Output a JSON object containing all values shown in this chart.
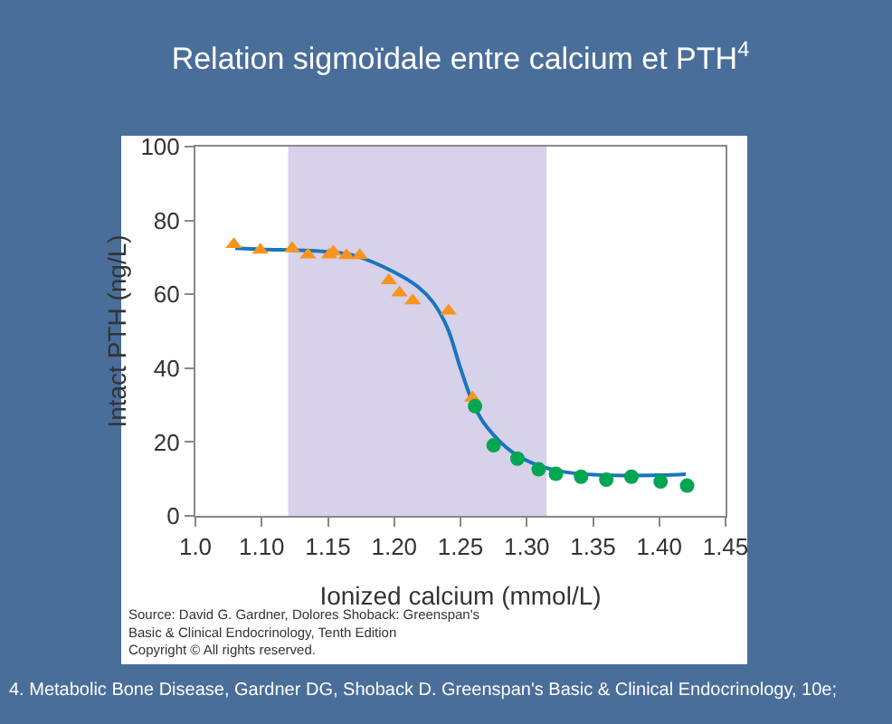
{
  "chart_data": {
    "type": "scatter",
    "title": "Relation sigmoïdale entre calcium et PTH$^{4}$",
    "xlabel": "Ionized calcium (mmol/L)",
    "ylabel": "Intact PTH (ng/L)",
    "xlim": [
      1.05,
      1.45
    ],
    "ylim": [
      0,
      100
    ],
    "xticks": [
      {
        "value": 1.05,
        "label": "1.0"
      },
      {
        "value": 1.1,
        "label": "1.10"
      },
      1.15,
      {
        "value": 1.2,
        "label": "1.20"
      },
      1.25,
      {
        "value": 1.3,
        "label": "1.30"
      },
      1.35,
      {
        "value": 1.4,
        "label": "1.40"
      },
      1.45
    ],
    "yticks": [
      0,
      20,
      40,
      60,
      80,
      100
    ],
    "grid": false,
    "bands": [
      {
        "axis": "x",
        "from": 1.12,
        "to": 1.315,
        "color": "#d7d1ea"
      }
    ],
    "series": [
      {
        "type": "line",
        "color": "#1a75bc",
        "marker": "none",
        "line_style": "solid",
        "x": [
          1.08,
          1.1,
          1.15,
          1.17,
          1.2,
          1.218,
          1.229,
          1.24,
          1.25,
          1.26,
          1.27,
          1.29,
          1.31,
          1.33,
          1.36,
          1.4,
          1.42
        ],
        "values": [
          72.5,
          72.2,
          71.5,
          70.5,
          66,
          62,
          58,
          51,
          40,
          30,
          24,
          17,
          13.5,
          11.8,
          11,
          11,
          11.3
        ]
      },
      {
        "color": "#f7941d",
        "marker": "triangle",
        "x": [
          1.079,
          1.099,
          1.123,
          1.135,
          1.151,
          1.154,
          1.164,
          1.174,
          1.196,
          1.204,
          1.214,
          1.241,
          1.259
        ],
        "values": [
          73.5,
          72,
          72.4,
          70.7,
          70.7,
          71.5,
          70.5,
          70.5,
          63.7,
          60.4,
          58.3,
          55.5,
          31.9
        ]
      },
      {
        "color": "#00a651",
        "marker": "circle",
        "x": [
          1.261,
          1.275,
          1.293,
          1.309,
          1.322,
          1.341,
          1.36,
          1.379,
          1.401,
          1.421
        ],
        "values": [
          29.7,
          19.1,
          15.5,
          12.6,
          11.4,
          10.6,
          9.8,
          10.6,
          9.3,
          8.2
        ]
      }
    ],
    "annotations": [
      "Source: David G. Gardner, Dolores Shoback: Greenspan's\nBasic & Clinical Endocrinology, Tenth Edition\nCopyright © All rights reserved.",
      "4. Metabolic Bone Disease, Gardner DG, Shoback D. Greenspan's Basic & Clinical Endocrinology, 10e;"
    ]
  }
}
